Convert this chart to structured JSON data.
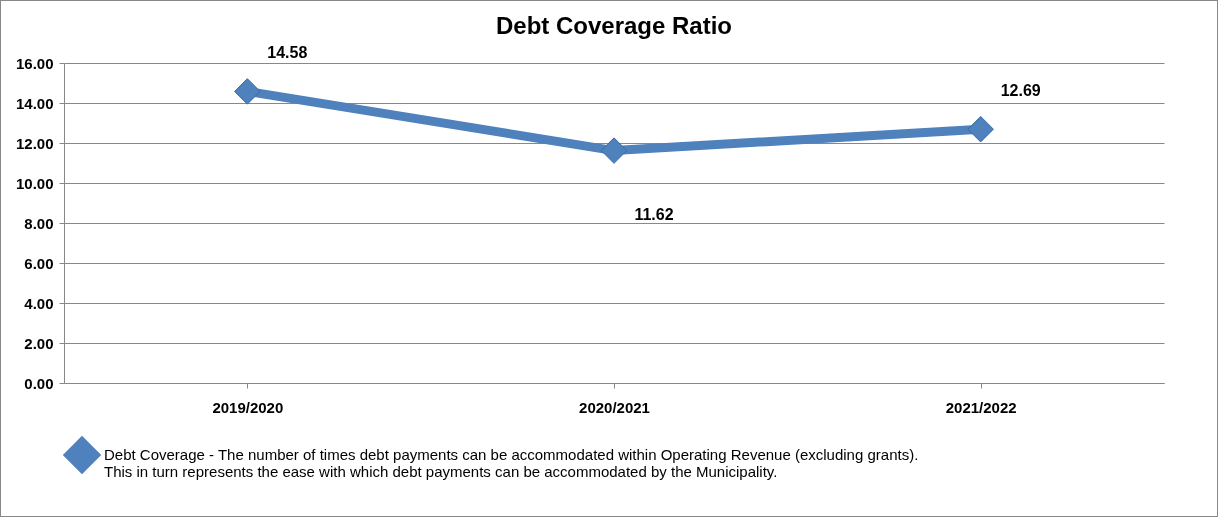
{
  "chart_data": {
    "type": "line",
    "title": "Debt Coverage Ratio",
    "categories": [
      "2019/2020",
      "2020/2021",
      "2021/2022"
    ],
    "series": [
      {
        "name": "Debt Coverage - The number of times debt payments can be accommodated within Operating Revenue (excluding grants).  This in turn represents the ease with which debt payments can be accommodated by the Municipality.",
        "color": "#4f81bd",
        "values": [
          14.58,
          11.62,
          12.69
        ]
      }
    ],
    "ylim": [
      0,
      16
    ],
    "yticks": [
      {
        "value": 0,
        "label": "0.00"
      },
      {
        "value": 2,
        "label": "2.00"
      },
      {
        "value": 4,
        "label": "4.00"
      },
      {
        "value": 6,
        "label": "6.00"
      },
      {
        "value": 8,
        "label": "8.00"
      },
      {
        "value": 10,
        "label": "10.00"
      },
      {
        "value": 12,
        "label": "12.00"
      },
      {
        "value": 14,
        "label": "14.00"
      },
      {
        "value": 16,
        "label": "16.00"
      }
    ],
    "grid": "y",
    "legend": "bottom",
    "marker": "diamond",
    "line_style": "solid",
    "data_labels": true
  }
}
